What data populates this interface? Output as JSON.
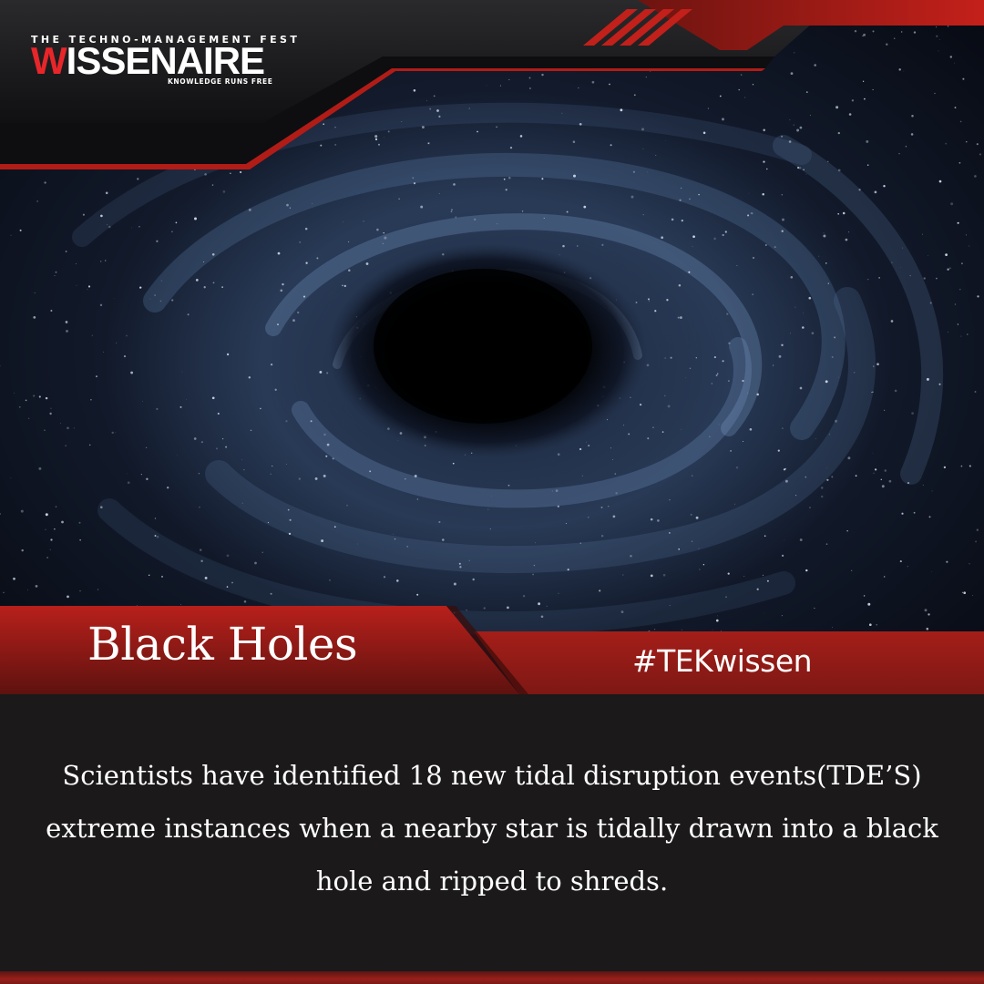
{
  "brand": {
    "tagline_top": "THE TECHNO-MANAGEMENT FEST",
    "logo_initial": "W",
    "logo_rest": "ISSENAIRE",
    "tagline_bottom": "KNOWLEDGE RUNS FREE"
  },
  "post": {
    "title": "Black Holes",
    "hashtag": "#TEKwissen",
    "body": "Scientists have identified 18 new tidal disruption events(TDE’S) extreme instances when a nearby star is tidally drawn into a black hole and ripped to shreds."
  },
  "colors": {
    "accent_red": "#c0201c",
    "dark_background": "#1b1919",
    "space": "#0b0e18"
  }
}
